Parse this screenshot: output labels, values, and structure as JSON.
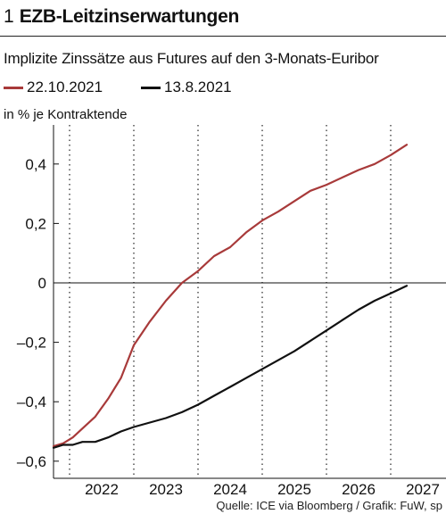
{
  "header": {
    "number": "1",
    "title": "EZB-Leitzinserwartungen"
  },
  "chart_data": {
    "type": "line",
    "title": "EZB-Leitzinserwartungen",
    "subtitle": "Implizite Zinssätze aus Futures auf den 3-Monats-Euribor",
    "ylabel": "in % je Kontraktende",
    "xlabel": "",
    "x_ticks": [
      "2022",
      "2023",
      "2024",
      "2025",
      "2026",
      "2027"
    ],
    "xlim": [
      2021.2,
      2027.5
    ],
    "ylim": [
      -0.6,
      0.5
    ],
    "y_ticks": [
      -0.6,
      -0.4,
      -0.2,
      0,
      0.2,
      0.4
    ],
    "y_tick_labels": [
      "–0,6",
      "–0,4",
      "–0,2",
      "0",
      "0,2",
      "0,4"
    ],
    "grid": "vertical-dotted",
    "legend_position": "top-left",
    "series": [
      {
        "name": "22.10.2021",
        "color": "#a83a3a",
        "points": [
          [
            2021.25,
            -0.55
          ],
          [
            2021.4,
            -0.54
          ],
          [
            2021.55,
            -0.52
          ],
          [
            2021.7,
            -0.49
          ],
          [
            2021.9,
            -0.45
          ],
          [
            2022.1,
            -0.39
          ],
          [
            2022.3,
            -0.32
          ],
          [
            2022.5,
            -0.21
          ],
          [
            2022.75,
            -0.13
          ],
          [
            2023.0,
            -0.06
          ],
          [
            2023.25,
            0.0
          ],
          [
            2023.5,
            0.04
          ],
          [
            2023.75,
            0.09
          ],
          [
            2024.0,
            0.12
          ],
          [
            2024.25,
            0.17
          ],
          [
            2024.5,
            0.21
          ],
          [
            2024.75,
            0.24
          ],
          [
            2025.0,
            0.275
          ],
          [
            2025.25,
            0.31
          ],
          [
            2025.5,
            0.33
          ],
          [
            2025.75,
            0.355
          ],
          [
            2026.0,
            0.38
          ],
          [
            2026.25,
            0.4
          ],
          [
            2026.5,
            0.43
          ],
          [
            2026.75,
            0.465
          ]
        ]
      },
      {
        "name": "13.8.2021",
        "color": "#111111",
        "points": [
          [
            2021.25,
            -0.555
          ],
          [
            2021.4,
            -0.545
          ],
          [
            2021.55,
            -0.545
          ],
          [
            2021.7,
            -0.535
          ],
          [
            2021.9,
            -0.535
          ],
          [
            2022.1,
            -0.52
          ],
          [
            2022.3,
            -0.5
          ],
          [
            2022.5,
            -0.485
          ],
          [
            2022.75,
            -0.47
          ],
          [
            2023.0,
            -0.455
          ],
          [
            2023.25,
            -0.435
          ],
          [
            2023.5,
            -0.41
          ],
          [
            2023.75,
            -0.38
          ],
          [
            2024.0,
            -0.35
          ],
          [
            2024.25,
            -0.32
          ],
          [
            2024.5,
            -0.29
          ],
          [
            2024.75,
            -0.26
          ],
          [
            2025.0,
            -0.23
          ],
          [
            2025.25,
            -0.195
          ],
          [
            2025.5,
            -0.16
          ],
          [
            2025.75,
            -0.125
          ],
          [
            2026.0,
            -0.09
          ],
          [
            2026.25,
            -0.06
          ],
          [
            2026.5,
            -0.035
          ],
          [
            2026.75,
            -0.01
          ]
        ]
      }
    ]
  },
  "source": "Quelle: ICE via Bloomberg / Grafik: FuW, sp"
}
